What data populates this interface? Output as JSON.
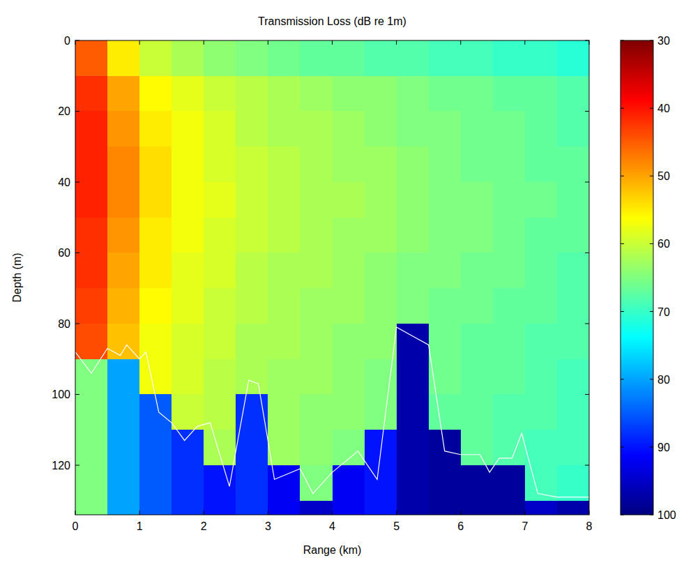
{
  "chart_data": {
    "type": "heatmap",
    "title": "Transmission Loss (dB re 1m)",
    "x_label": "Range (km)",
    "y_label": "Depth (m)",
    "xlim": [
      0,
      8
    ],
    "xticks": [
      0,
      1,
      2,
      3,
      4,
      5,
      6,
      7,
      8
    ],
    "ylim": [
      0,
      134
    ],
    "yticks": [
      0,
      20,
      40,
      60,
      80,
      100,
      120
    ],
    "x_edges": [
      0,
      0.5,
      1,
      1.5,
      2,
      2.5,
      3,
      3.5,
      4,
      4.5,
      5,
      5.5,
      6,
      6.5,
      7,
      7.5,
      8
    ],
    "y_edges": [
      0,
      10,
      20,
      30,
      40,
      50,
      60,
      70,
      80,
      90,
      100,
      110,
      120,
      130,
      134
    ],
    "cells": [
      [
        45,
        55,
        60,
        62,
        64,
        65,
        66,
        67,
        67,
        68,
        68,
        69,
        69,
        70,
        70,
        71
      ],
      [
        42,
        50,
        56,
        58,
        60,
        61,
        62,
        63,
        64,
        64,
        65,
        66,
        66,
        67,
        67,
        68
      ],
      [
        41,
        49,
        55,
        57,
        59,
        61,
        62,
        62,
        63,
        64,
        65,
        65,
        66,
        66,
        67,
        68
      ],
      [
        41,
        48,
        54,
        57,
        59,
        60,
        61,
        62,
        63,
        63,
        64,
        65,
        66,
        66,
        67,
        67
      ],
      [
        41,
        48,
        54,
        57,
        58,
        60,
        61,
        62,
        62,
        63,
        64,
        65,
        65,
        66,
        66,
        67
      ],
      [
        42,
        49,
        55,
        57,
        59,
        60,
        61,
        62,
        63,
        63,
        64,
        65,
        65,
        66,
        67,
        67
      ],
      [
        42,
        50,
        55,
        58,
        59,
        61,
        62,
        62,
        63,
        64,
        65,
        65,
        66,
        66,
        67,
        68
      ],
      [
        43,
        51,
        56,
        58,
        60,
        61,
        62,
        63,
        63,
        64,
        65,
        66,
        66,
        67,
        67,
        68
      ],
      [
        44,
        52,
        57,
        59,
        60,
        62,
        62,
        63,
        64,
        64,
        97,
        66,
        67,
        67,
        68,
        68
      ],
      [
        65,
        80,
        57,
        59,
        61,
        62,
        63,
        63,
        64,
        65,
        97,
        66,
        67,
        67,
        68,
        69
      ],
      [
        65,
        80,
        85,
        60,
        61,
        88,
        63,
        64,
        64,
        65,
        97,
        67,
        67,
        68,
        68,
        69
      ],
      [
        65,
        80,
        85,
        88,
        62,
        88,
        63,
        64,
        65,
        90,
        97,
        98,
        67,
        68,
        69,
        69
      ],
      [
        65,
        80,
        85,
        88,
        90,
        88,
        92,
        65,
        92,
        90,
        97,
        98,
        98,
        98,
        69,
        70
      ],
      [
        65,
        80,
        85,
        88,
        90,
        88,
        92,
        95,
        92,
        90,
        97,
        98,
        98,
        98,
        95,
        97
      ]
    ],
    "color_range": [
      30,
      100
    ],
    "color_ticks": [
      30,
      40,
      50,
      60,
      70,
      80,
      90,
      100
    ],
    "series": [
      {
        "type": "line",
        "color": "#ffffff",
        "x": [
          0,
          0.25,
          0.5,
          0.7,
          0.8,
          1.0,
          1.1,
          1.3,
          1.5,
          1.7,
          1.9,
          2.1,
          2.4,
          2.7,
          2.85,
          3.1,
          3.5,
          3.7,
          4.0,
          4.4,
          4.7,
          5.0,
          5.2,
          5.5,
          5.75,
          6.0,
          6.3,
          6.45,
          6.6,
          6.8,
          6.95,
          7.2,
          7.5,
          8
        ],
        "values": [
          88,
          94,
          87,
          89,
          86,
          90,
          88,
          105,
          108,
          113,
          109,
          108,
          126,
          96,
          97,
          124,
          121,
          128,
          122,
          116,
          124,
          81,
          83,
          86,
          116,
          117,
          117,
          122,
          118,
          118,
          111,
          128,
          129,
          129
        ]
      }
    ]
  }
}
